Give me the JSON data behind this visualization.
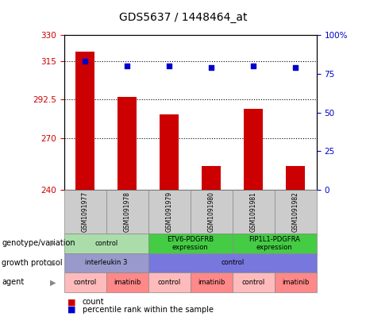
{
  "title": "GDS5637 / 1448464_at",
  "samples": [
    "GSM1091977",
    "GSM1091978",
    "GSM1091979",
    "GSM1091980",
    "GSM1091981",
    "GSM1091982"
  ],
  "bar_values": [
    320.5,
    294,
    284,
    254,
    287,
    254
  ],
  "percentile_values": [
    83,
    80,
    80,
    79,
    80,
    79
  ],
  "ylim_left": [
    240,
    330
  ],
  "yticks_left": [
    240,
    270,
    292.5,
    315,
    330
  ],
  "ytick_labels_left": [
    "240",
    "270",
    "292.5",
    "315",
    "330"
  ],
  "ylim_right": [
    0,
    100
  ],
  "yticks_right": [
    0,
    25,
    50,
    75,
    100
  ],
  "ytick_labels_right": [
    "0",
    "25",
    "50",
    "75",
    "100%"
  ],
  "bar_color": "#cc0000",
  "dot_color": "#0000cc",
  "genotype_labels": [
    {
      "text": "control",
      "span": [
        0,
        2
      ],
      "color": "#aaddaa"
    },
    {
      "text": "ETV6-PDGFRB\nexpression",
      "span": [
        2,
        4
      ],
      "color": "#44cc44"
    },
    {
      "text": "FIP1L1-PDGFRA\nexpression",
      "span": [
        4,
        6
      ],
      "color": "#44cc44"
    }
  ],
  "growth_labels": [
    {
      "text": "interleukin 3",
      "span": [
        0,
        2
      ],
      "color": "#9999cc"
    },
    {
      "text": "control",
      "span": [
        2,
        6
      ],
      "color": "#7777dd"
    }
  ],
  "agent_labels": [
    {
      "text": "control",
      "span": [
        0,
        1
      ],
      "color": "#ffbbbb"
    },
    {
      "text": "imatinib",
      "span": [
        1,
        2
      ],
      "color": "#ff8888"
    },
    {
      "text": "control",
      "span": [
        2,
        3
      ],
      "color": "#ffbbbb"
    },
    {
      "text": "imatinib",
      "span": [
        3,
        4
      ],
      "color": "#ff8888"
    },
    {
      "text": "control",
      "span": [
        4,
        5
      ],
      "color": "#ffbbbb"
    },
    {
      "text": "imatinib",
      "span": [
        5,
        6
      ],
      "color": "#ff8888"
    }
  ],
  "row_labels": [
    "genotype/variation",
    "growth protocol",
    "agent"
  ],
  "legend_count_color": "#cc0000",
  "legend_percentile_color": "#0000cc",
  "plot_bg_color": "#ffffff",
  "sample_box_color": "#cccccc",
  "gridline_color": "#000000",
  "hgrid_values": [
    315,
    292.5,
    270
  ]
}
